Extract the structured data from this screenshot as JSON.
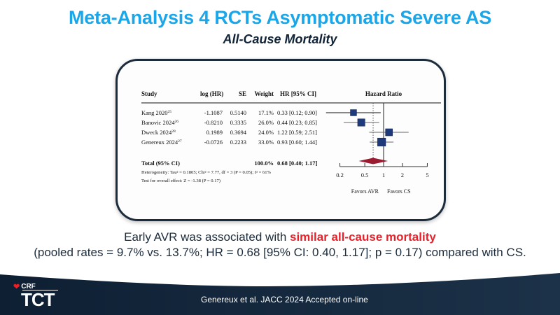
{
  "slide": {
    "title": "Meta-Analysis 4 RCTs Asymptomatic Severe AS",
    "subtitle": "All-Cause Mortality"
  },
  "forest_table": {
    "headers": {
      "study": "Study",
      "loghr": "log (HR)",
      "se": "SE",
      "weight": "Weight",
      "hr": "HR [95% CI]",
      "plot": "Hazard Ratio"
    },
    "rows": [
      {
        "study": "Kang 2020",
        "ref": "25",
        "loghr": "-1.1087",
        "se": "0.5140",
        "weight": "17.1%",
        "hr_text": "0.33 [0.12; 0.90]",
        "hr": 0.33,
        "lo": 0.12,
        "hi": 0.9,
        "w": 17.1
      },
      {
        "study": "Banovic 2024",
        "ref": "26",
        "loghr": "-0.8210",
        "se": "0.3335",
        "weight": "26.0%",
        "hr_text": "0.44 [0.23; 0.85]",
        "hr": 0.44,
        "lo": 0.23,
        "hi": 0.85,
        "w": 26.0
      },
      {
        "study": "Dweck 2024",
        "ref": "28",
        "loghr": "0.1989",
        "se": "0.3694",
        "weight": "24.0%",
        "hr_text": "1.22 [0.59; 2.51]",
        "hr": 1.22,
        "lo": 0.59,
        "hi": 2.51,
        "w": 24.0
      },
      {
        "study": "Genereux 2024",
        "ref": "27",
        "loghr": "-0.0726",
        "se": "0.2233",
        "weight": "33.0%",
        "hr_text": "0.93 [0.60; 1.44]",
        "hr": 0.93,
        "lo": 0.6,
        "hi": 1.44,
        "w": 33.0
      }
    ],
    "total": {
      "label": "Total (95% CI)",
      "weight": "100.0%",
      "hr_text": "0.68 [0.40; 1.17]",
      "hr": 0.68,
      "lo": 0.4,
      "hi": 1.17
    },
    "heterogeneity": "Heterogeneity: Tau² = 0.1805; Chi² = 7.77, df = 3 (P = 0.05); I² = 61%",
    "overall_effect": "Test for overall effect: Z = -1.38 (P = 0.17)",
    "axis_ticks": [
      0.2,
      0.5,
      1,
      2,
      5
    ],
    "axis_tick_labels": [
      "0.2",
      "0.5",
      "1",
      "2",
      "5"
    ],
    "favors_left": "Favors AVR",
    "favors_right": "Favors CS",
    "colors": {
      "square": "#1f3a7a",
      "diamond": "#9b1b30"
    }
  },
  "summary": {
    "line1_pre": "Early AVR was associated with ",
    "line1_highlight": "similar all-cause mortality",
    "line2": "(pooled rates = 9.7% vs. 13.7%; HR = 0.68 [95% CI: 0.40, 1.17]; p = 0.17) compared with CS."
  },
  "footer": {
    "citation": "Genereux et al. JACC 2024 Accepted on-line",
    "logo_small": "CRF",
    "logo_large": "TCT"
  }
}
